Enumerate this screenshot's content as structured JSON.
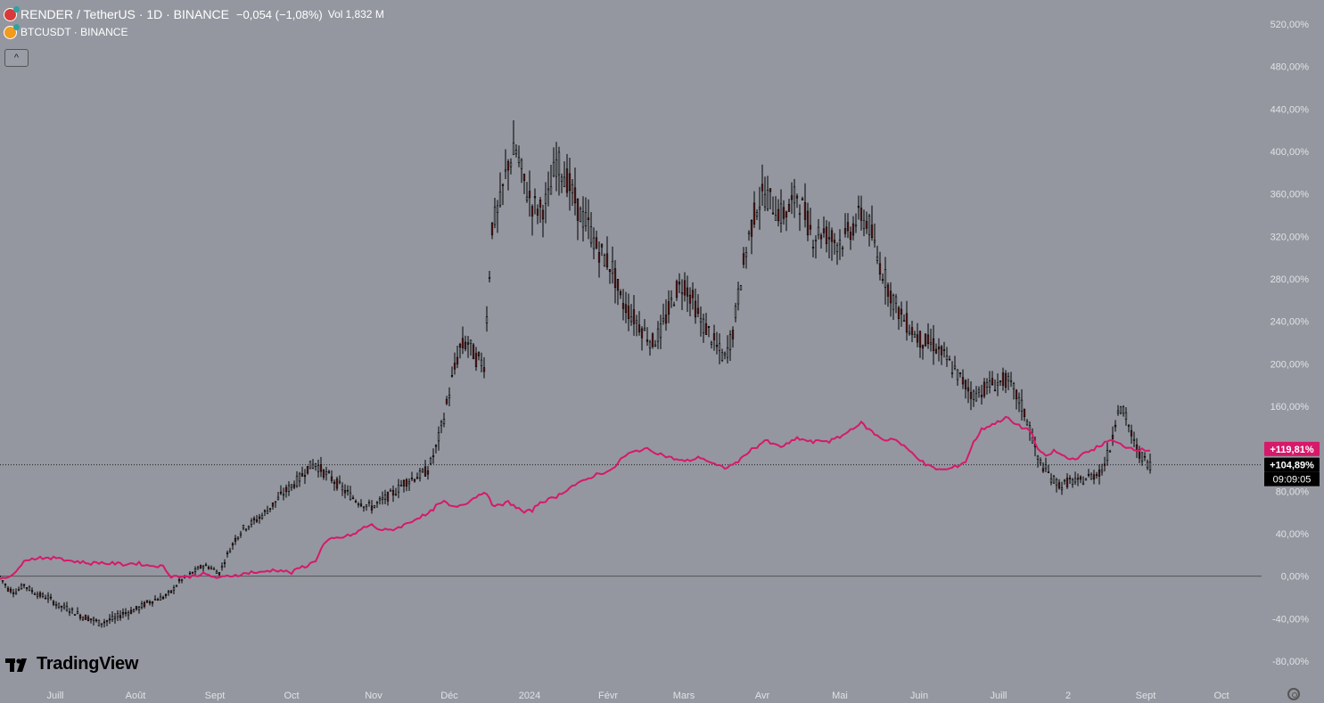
{
  "legend": {
    "main_title": "RENDER / TetherUS · 1D · BINANCE",
    "change": "−0,054 (−1,08%)",
    "vol_label": "Vol",
    "vol_value": "1,832 M",
    "compare_title": "BTCUSDT · BINANCE",
    "collapse_glyph": "^",
    "render_icon": "render-coin-icon",
    "btc_icon": "bitcoin-coin-icon"
  },
  "branding": {
    "logo_text": "TradingView"
  },
  "colors": {
    "background": "#94979f",
    "candle_up": "#9aa0a8",
    "candle_down": "#7a1f1f",
    "wick": "#000000",
    "compare_line": "#d6196b",
    "zero_line": "#555555",
    "axis_text": "#e0e2e6"
  },
  "chart_data": {
    "type": "line",
    "mode": "percent",
    "x_labels": [
      "Juill",
      "Août",
      "Sept",
      "Oct",
      "Nov",
      "Déc",
      "2024",
      "Févr",
      "Mars",
      "Avr",
      "Mai",
      "Juin",
      "Juill",
      "2",
      "Sept",
      "Oct"
    ],
    "y_ticks": [
      "520,00%",
      "480,00%",
      "440,00%",
      "400,00%",
      "360,00%",
      "320,00%",
      "280,00%",
      "240,00%",
      "200,00%",
      "160,00%",
      "120,00%",
      "80,00%",
      "40,00%",
      "0,00%",
      "-40,00%",
      "-80,00%"
    ],
    "ylim": [
      -84,
      528
    ],
    "series": [
      {
        "name": "RENDER / TetherUS",
        "type": "candlestick",
        "points": [
          [
            0,
            0
          ],
          [
            3,
            -12
          ],
          [
            6,
            -15
          ],
          [
            9,
            -8
          ],
          [
            12,
            -14
          ],
          [
            15,
            -18
          ],
          [
            18,
            -20
          ],
          [
            22,
            -28
          ],
          [
            25,
            -30
          ],
          [
            28,
            -34
          ],
          [
            31,
            -38
          ],
          [
            34,
            -40
          ],
          [
            37,
            -44
          ],
          [
            40,
            -42
          ],
          [
            43,
            -40
          ],
          [
            46,
            -35
          ],
          [
            49,
            -33
          ],
          [
            52,
            -30
          ],
          [
            55,
            -25
          ],
          [
            58,
            -22
          ],
          [
            61,
            -20
          ],
          [
            64,
            -15
          ],
          [
            67,
            -5
          ],
          [
            70,
            0
          ],
          [
            73,
            5
          ],
          [
            76,
            10
          ],
          [
            79,
            8
          ],
          [
            82,
            3
          ],
          [
            85,
            20
          ],
          [
            88,
            35
          ],
          [
            91,
            45
          ],
          [
            94,
            50
          ],
          [
            97,
            55
          ],
          [
            100,
            62
          ],
          [
            103,
            70
          ],
          [
            106,
            78
          ],
          [
            109,
            85
          ],
          [
            112,
            92
          ],
          [
            115,
            102
          ],
          [
            118,
            106
          ],
          [
            121,
            98
          ],
          [
            124,
            92
          ],
          [
            127,
            85
          ],
          [
            130,
            78
          ],
          [
            133,
            72
          ],
          [
            136,
            68
          ],
          [
            139,
            65
          ],
          [
            142,
            70
          ],
          [
            145,
            75
          ],
          [
            148,
            80
          ],
          [
            151,
            88
          ],
          [
            154,
            92
          ],
          [
            157,
            95
          ],
          [
            160,
            100
          ],
          [
            163,
            120
          ],
          [
            166,
            150
          ],
          [
            169,
            185
          ],
          [
            172,
            215
          ],
          [
            175,
            220
          ],
          [
            178,
            205
          ],
          [
            181,
            200
          ],
          [
            184,
            330
          ],
          [
            187,
            350
          ],
          [
            190,
            390
          ],
          [
            193,
            400
          ],
          [
            196,
            370
          ],
          [
            199,
            350
          ],
          [
            202,
            345
          ],
          [
            205,
            355
          ],
          [
            208,
            390
          ],
          [
            211,
            380
          ],
          [
            214,
            360
          ],
          [
            217,
            340
          ],
          [
            220,
            330
          ],
          [
            223,
            310
          ],
          [
            226,
            300
          ],
          [
            229,
            290
          ],
          [
            232,
            260
          ],
          [
            235,
            250
          ],
          [
            238,
            240
          ],
          [
            241,
            230
          ],
          [
            244,
            220
          ],
          [
            247,
            230
          ],
          [
            250,
            250
          ],
          [
            253,
            270
          ],
          [
            256,
            275
          ],
          [
            259,
            260
          ],
          [
            262,
            240
          ],
          [
            265,
            230
          ],
          [
            268,
            215
          ],
          [
            271,
            205
          ],
          [
            274,
            230
          ],
          [
            277,
            280
          ],
          [
            280,
            320
          ],
          [
            283,
            350
          ],
          [
            286,
            360
          ],
          [
            289,
            350
          ],
          [
            292,
            340
          ],
          [
            295,
            345
          ],
          [
            298,
            360
          ],
          [
            301,
            340
          ],
          [
            304,
            320
          ],
          [
            307,
            325
          ],
          [
            310,
            320
          ],
          [
            313,
            315
          ],
          [
            316,
            318
          ],
          [
            319,
            330
          ],
          [
            322,
            340
          ],
          [
            325,
            330
          ],
          [
            328,
            300
          ],
          [
            331,
            280
          ],
          [
            334,
            260
          ],
          [
            337,
            245
          ],
          [
            340,
            235
          ],
          [
            343,
            225
          ],
          [
            346,
            220
          ],
          [
            349,
            218
          ],
          [
            352,
            210
          ],
          [
            355,
            200
          ],
          [
            358,
            190
          ],
          [
            361,
            180
          ],
          [
            364,
            170
          ],
          [
            367,
            175
          ],
          [
            370,
            180
          ],
          [
            373,
            182
          ],
          [
            376,
            185
          ],
          [
            379,
            175
          ],
          [
            382,
            160
          ],
          [
            385,
            140
          ],
          [
            388,
            110
          ],
          [
            391,
            100
          ],
          [
            394,
            90
          ],
          [
            397,
            85
          ],
          [
            400,
            90
          ],
          [
            403,
            88
          ],
          [
            406,
            92
          ],
          [
            409,
            95
          ],
          [
            412,
            100
          ],
          [
            415,
            120
          ],
          [
            418,
            160
          ],
          [
            421,
            150
          ],
          [
            424,
            125
          ],
          [
            427,
            112
          ],
          [
            430,
            105
          ]
        ]
      },
      {
        "name": "BTCUSDT · BINANCE",
        "type": "line",
        "points": [
          [
            0,
            -2
          ],
          [
            3,
            0
          ],
          [
            6,
            3
          ],
          [
            9,
            16
          ],
          [
            12,
            16
          ],
          [
            15,
            18
          ],
          [
            18,
            16
          ],
          [
            22,
            18
          ],
          [
            25,
            15
          ],
          [
            28,
            14
          ],
          [
            31,
            13
          ],
          [
            34,
            12
          ],
          [
            37,
            13
          ],
          [
            40,
            12
          ],
          [
            43,
            12
          ],
          [
            46,
            11
          ],
          [
            49,
            12
          ],
          [
            52,
            12
          ],
          [
            55,
            10
          ],
          [
            58,
            10
          ],
          [
            61,
            9
          ],
          [
            64,
            0
          ],
          [
            67,
            0
          ],
          [
            70,
            -1
          ],
          [
            73,
            1
          ],
          [
            76,
            2
          ],
          [
            79,
            0
          ],
          [
            82,
            -2
          ],
          [
            85,
            0
          ],
          [
            88,
            1
          ],
          [
            91,
            2
          ],
          [
            94,
            4
          ],
          [
            97,
            3
          ],
          [
            100,
            5
          ],
          [
            103,
            6
          ],
          [
            106,
            5
          ],
          [
            109,
            3
          ],
          [
            112,
            8
          ],
          [
            115,
            10
          ],
          [
            118,
            15
          ],
          [
            121,
            30
          ],
          [
            124,
            35
          ],
          [
            127,
            36
          ],
          [
            130,
            38
          ],
          [
            133,
            40
          ],
          [
            136,
            46
          ],
          [
            139,
            48
          ],
          [
            142,
            44
          ],
          [
            145,
            43
          ],
          [
            148,
            45
          ],
          [
            151,
            48
          ],
          [
            154,
            52
          ],
          [
            157,
            56
          ],
          [
            160,
            58
          ],
          [
            163,
            66
          ],
          [
            166,
            70
          ],
          [
            169,
            65
          ],
          [
            172,
            67
          ],
          [
            175,
            70
          ],
          [
            178,
            75
          ],
          [
            181,
            80
          ],
          [
            184,
            68
          ],
          [
            187,
            66
          ],
          [
            190,
            70
          ],
          [
            193,
            65
          ],
          [
            196,
            60
          ],
          [
            199,
            62
          ],
          [
            202,
            70
          ],
          [
            205,
            72
          ],
          [
            208,
            75
          ],
          [
            211,
            80
          ],
          [
            214,
            85
          ],
          [
            217,
            88
          ],
          [
            220,
            92
          ],
          [
            223,
            96
          ],
          [
            226,
            98
          ],
          [
            229,
            100
          ],
          [
            232,
            110
          ],
          [
            235,
            115
          ],
          [
            238,
            118
          ],
          [
            241,
            120
          ],
          [
            244,
            118
          ],
          [
            247,
            115
          ],
          [
            250,
            112
          ],
          [
            253,
            110
          ],
          [
            256,
            108
          ],
          [
            259,
            110
          ],
          [
            262,
            112
          ],
          [
            265,
            108
          ],
          [
            268,
            104
          ],
          [
            271,
            102
          ],
          [
            274,
            105
          ],
          [
            277,
            110
          ],
          [
            280,
            118
          ],
          [
            283,
            122
          ],
          [
            286,
            128
          ],
          [
            289,
            124
          ],
          [
            292,
            122
          ],
          [
            295,
            125
          ],
          [
            298,
            130
          ],
          [
            301,
            128
          ],
          [
            304,
            126
          ],
          [
            307,
            128
          ],
          [
            310,
            127
          ],
          [
            313,
            130
          ],
          [
            316,
            134
          ],
          [
            319,
            140
          ],
          [
            322,
            144
          ],
          [
            325,
            138
          ],
          [
            328,
            132
          ],
          [
            331,
            128
          ],
          [
            334,
            130
          ],
          [
            337,
            124
          ],
          [
            340,
            118
          ],
          [
            343,
            112
          ],
          [
            346,
            105
          ],
          [
            349,
            102
          ],
          [
            352,
            100
          ],
          [
            355,
            101
          ],
          [
            358,
            104
          ],
          [
            361,
            108
          ],
          [
            364,
            126
          ],
          [
            367,
            138
          ],
          [
            370,
            142
          ],
          [
            373,
            145
          ],
          [
            376,
            150
          ],
          [
            379,
            144
          ],
          [
            382,
            140
          ],
          [
            385,
            138
          ],
          [
            388,
            120
          ],
          [
            391,
            112
          ],
          [
            394,
            118
          ],
          [
            397,
            114
          ],
          [
            400,
            110
          ],
          [
            403,
            112
          ],
          [
            406,
            116
          ],
          [
            409,
            120
          ],
          [
            412,
            124
          ],
          [
            415,
            128
          ],
          [
            418,
            125
          ],
          [
            421,
            122
          ],
          [
            424,
            120
          ],
          [
            427,
            119
          ],
          [
            430,
            119
          ]
        ]
      }
    ],
    "price_badges": [
      {
        "label": "+119,81%",
        "value": 119.81,
        "color": "#d6196b"
      },
      {
        "label": "+104,89%",
        "value": 104.89,
        "color": "#000000"
      }
    ],
    "countdown": "09:09:05",
    "crosshair_value": 104.89,
    "zero_line": 0,
    "grid": false
  }
}
